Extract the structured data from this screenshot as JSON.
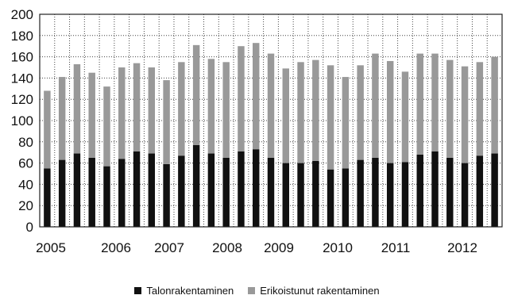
{
  "chart_data": {
    "type": "bar",
    "stacked": true,
    "title": "",
    "xlabel": "",
    "ylabel": "",
    "ylim": [
      0,
      200
    ],
    "yticks": [
      0,
      20,
      40,
      60,
      80,
      100,
      120,
      140,
      160,
      180,
      200
    ],
    "grid": true,
    "legend_position": "bottom",
    "x_tick_labels": [
      "2005",
      "2006",
      "2007",
      "2008",
      "2009",
      "2010",
      "2011",
      "2012"
    ],
    "series": [
      {
        "name": "Talonrakentaminen",
        "color": "#111111",
        "values": [
          55,
          63,
          69,
          65,
          57,
          64,
          71,
          69,
          59,
          67,
          77,
          69,
          65,
          71,
          73,
          65,
          60,
          60,
          62,
          54,
          55,
          63,
          65,
          60,
          61,
          68,
          71,
          65,
          60,
          67,
          69
        ]
      },
      {
        "name": "Erikoistunut rakentaminen",
        "color": "#999999",
        "values": [
          73,
          78,
          84,
          80,
          75,
          86,
          83,
          81,
          79,
          88,
          94,
          89,
          90,
          99,
          100,
          98,
          89,
          95,
          95,
          98,
          86,
          89,
          98,
          96,
          85,
          95,
          92,
          92,
          91,
          88,
          91
        ]
      }
    ]
  }
}
